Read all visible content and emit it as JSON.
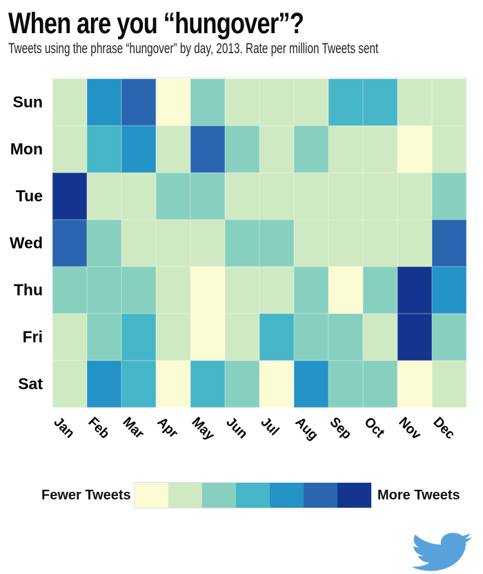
{
  "header": {
    "title": "When are you “hungover”?",
    "subtitle": "Tweets using the phrase “hungover” by day, 2013. Rate per million Tweets sent"
  },
  "chart_data": {
    "type": "heatmap",
    "title": "When are you “hungover”?",
    "subtitle": "Tweets using the phrase “hungover” by day, 2013. Rate per million Tweets sent",
    "rows": [
      "Sun",
      "Mon",
      "Tue",
      "Wed",
      "Thu",
      "Fri",
      "Sat"
    ],
    "columns": [
      "Jan",
      "Feb",
      "Mar",
      "Apr",
      "May",
      "Jun",
      "Jul",
      "Aug",
      "Sep",
      "Oct",
      "Nov",
      "Dec"
    ],
    "palette": [
      "#fcfcd4",
      "#cfe9c3",
      "#87d0bf",
      "#46b5c7",
      "#2493c6",
      "#2a65b0",
      "#13358f"
    ],
    "scale_note": "cell values are color levels 0 (fewer tweets) through 6 (more tweets)",
    "values": [
      [
        1,
        4,
        5,
        0,
        2,
        1,
        1,
        1,
        3,
        3,
        1,
        1
      ],
      [
        1,
        3,
        4,
        1,
        5,
        2,
        1,
        2,
        1,
        1,
        0,
        1
      ],
      [
        6,
        1,
        1,
        2,
        2,
        1,
        1,
        1,
        1,
        1,
        1,
        2
      ],
      [
        5,
        2,
        1,
        1,
        1,
        2,
        2,
        1,
        1,
        1,
        1,
        5
      ],
      [
        2,
        2,
        2,
        1,
        0,
        1,
        1,
        2,
        0,
        2,
        6,
        4
      ],
      [
        1,
        2,
        3,
        1,
        0,
        1,
        3,
        2,
        2,
        1,
        6,
        2
      ],
      [
        1,
        4,
        3,
        0,
        3,
        2,
        0,
        4,
        2,
        2,
        0,
        1
      ]
    ],
    "legend": {
      "low_label": "Fewer Tweets",
      "high_label": "More Tweets",
      "position": "bottom"
    },
    "grid": "on",
    "x_tick_rotation": 45
  },
  "footer": {
    "logo": "twitter-bird",
    "logo_color": "#58a2dc"
  }
}
